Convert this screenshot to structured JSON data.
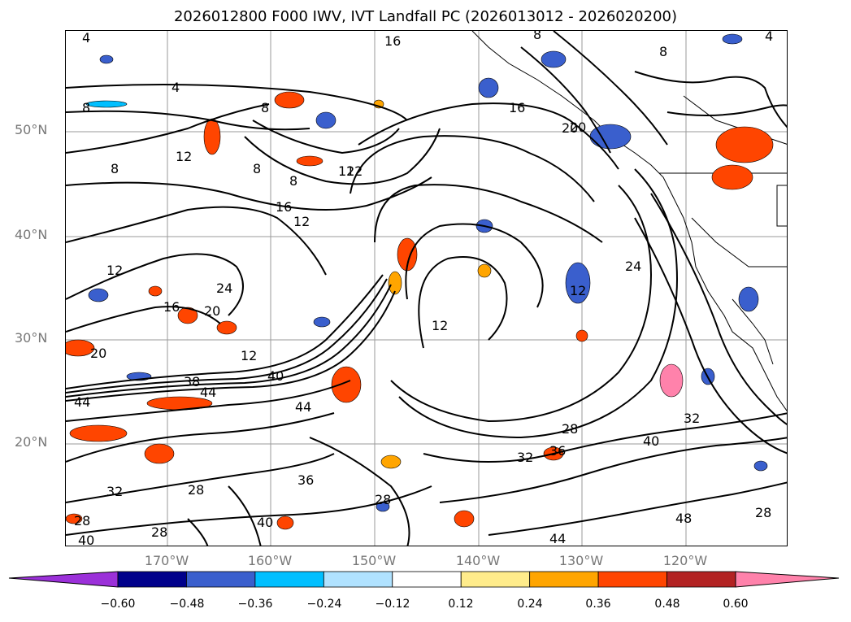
{
  "title": "2026012800 F000 IWV, IVT Landfall PC (2026013012 - 2026020200)",
  "lat_labels": [
    "50°N",
    "40°N",
    "30°N",
    "20°N"
  ],
  "lon_labels": [
    "170°W",
    "160°W",
    "150°W",
    "140°W",
    "130°W",
    "120°W"
  ],
  "contour_labels": [
    "4",
    "8",
    "16",
    "20",
    "8",
    "4",
    "8",
    "16",
    "20",
    "8",
    "8",
    "8",
    "12",
    "12",
    "16",
    "12",
    "12",
    "12",
    "24",
    "24",
    "16",
    "20",
    "12",
    "20",
    "40",
    "38",
    "44",
    "44",
    "44",
    "28",
    "32",
    "36",
    "40",
    "28",
    "32",
    "28",
    "36",
    "40",
    "48",
    "28",
    "32",
    "28",
    "40",
    "44",
    "28",
    "8",
    "12",
    "4",
    "12"
  ],
  "colorbar": {
    "colors": [
      "#9b30d9",
      "#00008b",
      "#3a5fcd",
      "#00bfff",
      "#b0e2ff",
      "#ffffff",
      "#ffec8b",
      "#ffa500",
      "#ff4500",
      "#b22222",
      "#ff82ab"
    ],
    "tick_labels": [
      "−0.60",
      "−0.48",
      "−0.36",
      "−0.24",
      "−0.12",
      "0.12",
      "0.24",
      "0.36",
      "0.48",
      "0.60"
    ]
  }
}
